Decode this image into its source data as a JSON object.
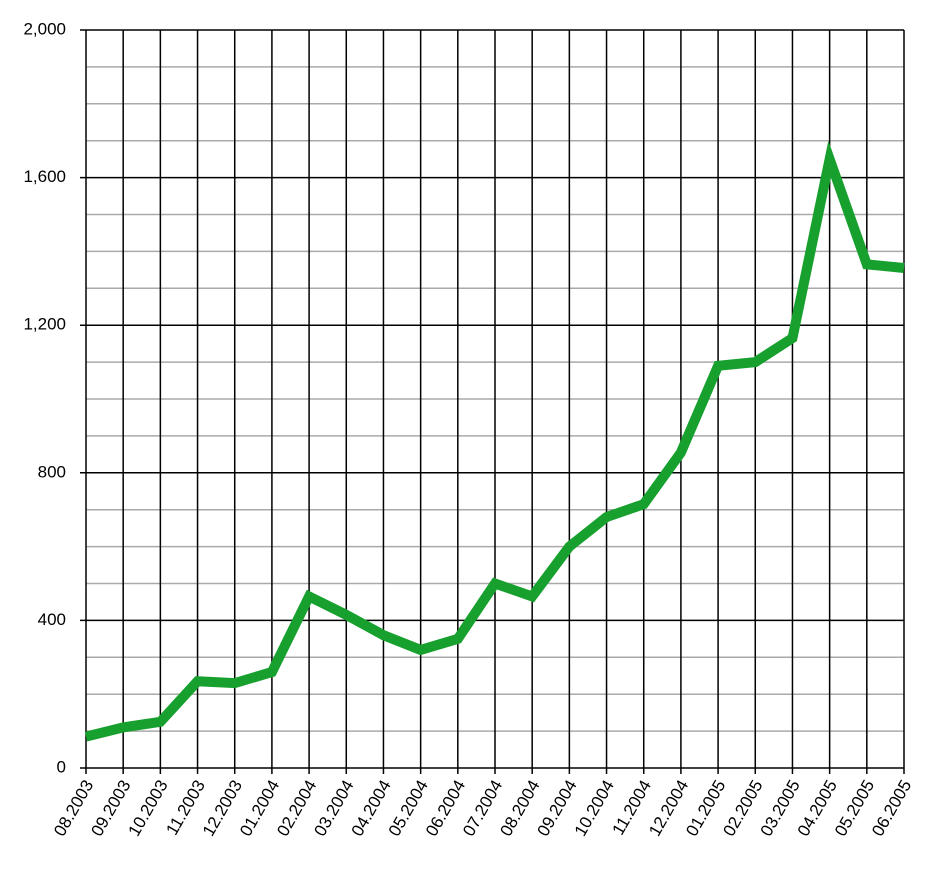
{
  "chart_data": {
    "type": "line",
    "categories": [
      "08.2003",
      "09.2003",
      "10.2003",
      "11.2003",
      "12.2003",
      "01.2004",
      "02.2004",
      "03.2004",
      "04.2004",
      "05.2004",
      "06.2004",
      "07.2004",
      "08.2004",
      "09.2004",
      "10.2004",
      "11.2004",
      "12.2004",
      "01.2005",
      "02.2005",
      "03.2005",
      "04.2005",
      "05.2005",
      "06.2005"
    ],
    "series": [
      {
        "color": "#17a02e",
        "values": [
          85,
          110,
          125,
          235,
          230,
          260,
          465,
          415,
          360,
          320,
          350,
          500,
          465,
          600,
          680,
          715,
          855,
          1090,
          1100,
          1165,
          1650,
          1365,
          1355
        ]
      }
    ],
    "ylim": [
      0,
      2000
    ],
    "yticks": [
      0,
      400,
      800,
      {
        "value": 1200,
        "label": "1,200"
      },
      {
        "value": 1600,
        "label": "1,600"
      },
      {
        "value": 2000,
        "label": "2,000"
      }
    ],
    "minor_yticks": [
      100,
      200,
      300,
      500,
      600,
      700,
      900,
      1000,
      1100,
      1300,
      1400,
      1500,
      1700,
      1800,
      1900
    ],
    "grid": true
  }
}
